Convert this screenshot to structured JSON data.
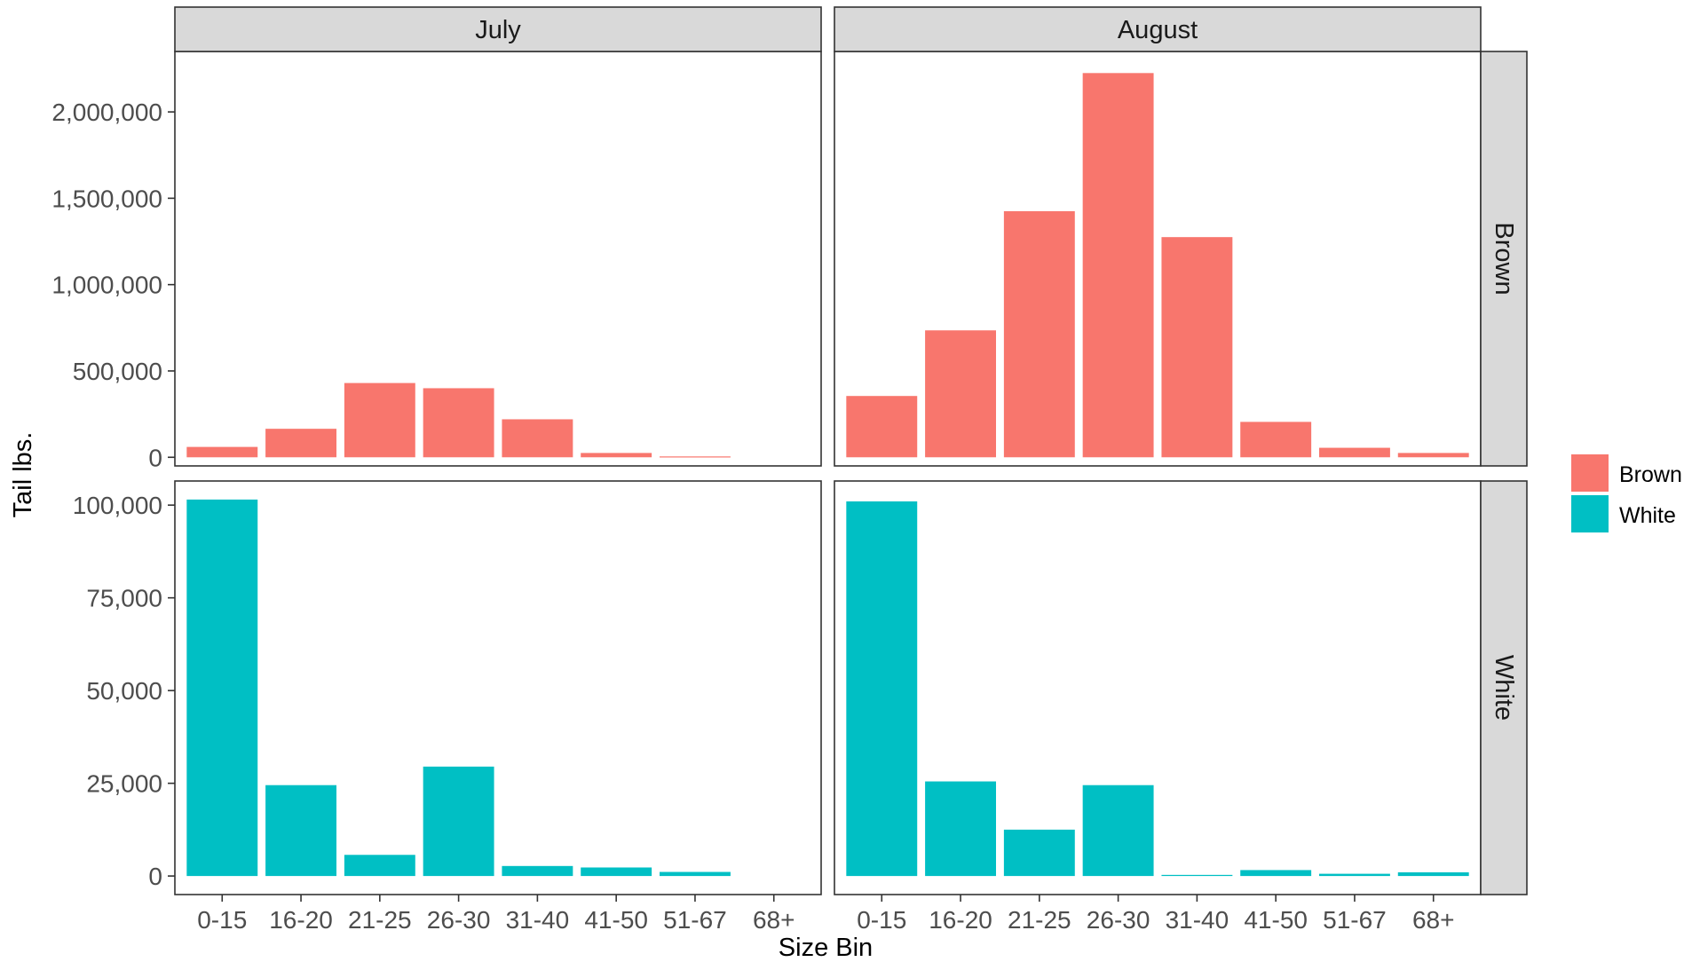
{
  "chart_data": {
    "type": "bar",
    "xlabel": "Size Bin",
    "ylabel": "Tail lbs.",
    "categories": [
      "0-15",
      "16-20",
      "21-25",
      "26-30",
      "31-40",
      "41-50",
      "51-67",
      "68+"
    ],
    "columns": [
      "July",
      "August"
    ],
    "rows": [
      "Brown",
      "White"
    ],
    "legend": {
      "position": "right",
      "entries": [
        {
          "label": "Brown",
          "color": "#F8766D"
        },
        {
          "label": "White",
          "color": "#00BFC4"
        }
      ]
    },
    "facets": [
      {
        "row": "Brown",
        "column": "July",
        "color": "#F8766D",
        "values": [
          60000,
          165000,
          430000,
          400000,
          220000,
          25000,
          5000,
          0
        ]
      },
      {
        "row": "Brown",
        "column": "August",
        "color": "#F8766D",
        "values": [
          355000,
          735000,
          1425000,
          2225000,
          1275000,
          205000,
          55000,
          25000
        ]
      },
      {
        "row": "White",
        "column": "July",
        "color": "#00BFC4",
        "values": [
          101500,
          24500,
          5700,
          29500,
          2700,
          2300,
          1100,
          0
        ]
      },
      {
        "row": "White",
        "column": "August",
        "color": "#00BFC4",
        "values": [
          101000,
          25500,
          12500,
          24500,
          300,
          1600,
          600,
          1000
        ]
      }
    ],
    "y_axes": [
      {
        "row": "Brown",
        "ylim": [
          -50000,
          2350000
        ],
        "ticks": [
          0,
          500000,
          1000000,
          1500000,
          2000000
        ],
        "tick_labels": [
          "0",
          "500,000",
          "1,000,000",
          "1,500,000",
          "2,000,000"
        ]
      },
      {
        "row": "White",
        "ylim": [
          -5000,
          106500
        ],
        "ticks": [
          0,
          25000,
          50000,
          75000,
          100000
        ],
        "tick_labels": [
          "0",
          "25,000",
          "50,000",
          "75,000",
          "100,000"
        ]
      }
    ],
    "grid": false,
    "theme": "bw"
  }
}
